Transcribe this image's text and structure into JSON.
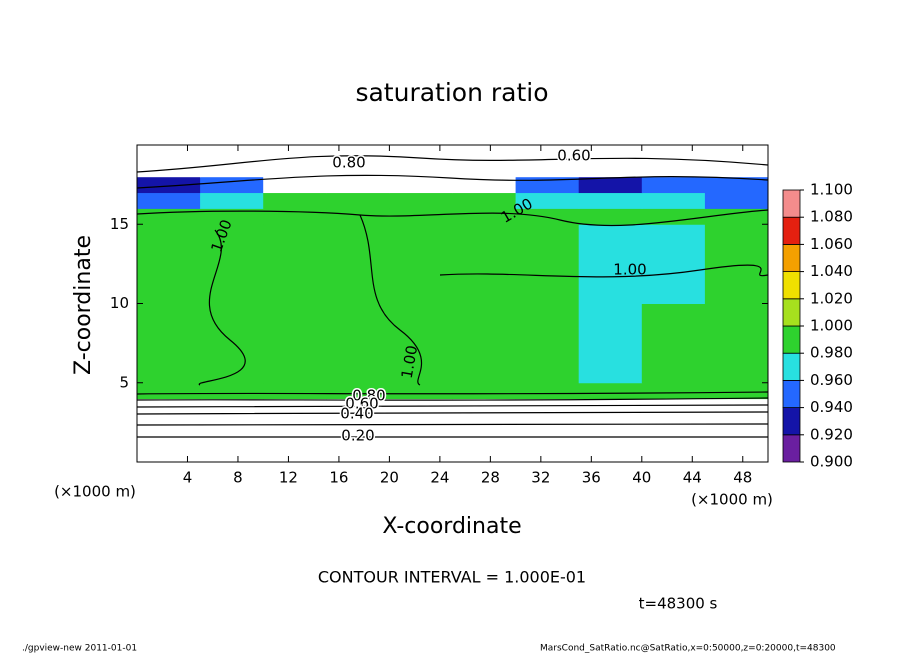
{
  "chart_data": {
    "type": "heatmap",
    "title": "saturation ratio",
    "x_label": "X-coordinate",
    "y_label": "Z-coordinate",
    "x_unit": "(×1000 m)",
    "y_unit": "(×1000 m)",
    "xlim": [
      0,
      50
    ],
    "ylim": [
      0,
      20
    ],
    "xticks": [
      4,
      8,
      12,
      16,
      20,
      24,
      28,
      32,
      36,
      40,
      44,
      48
    ],
    "yticks": [
      5,
      10,
      15
    ],
    "x_edges": [
      0,
      5,
      10,
      15,
      20,
      25,
      30,
      35,
      40,
      45,
      50
    ],
    "z_edges": [
      0,
      2,
      4,
      5,
      10,
      15,
      16,
      17,
      18,
      20
    ],
    "values": [
      [
        0.2,
        0.2,
        0.2,
        0.2,
        0.2,
        0.2,
        0.2,
        0.2,
        0.2,
        0.2
      ],
      [
        0.5,
        0.5,
        0.5,
        0.5,
        0.5,
        0.5,
        0.5,
        0.5,
        0.5,
        0.5
      ],
      [
        0.995,
        0.995,
        0.995,
        0.995,
        0.995,
        0.995,
        0.995,
        0.995,
        0.995,
        0.995
      ],
      [
        0.995,
        0.995,
        0.995,
        0.995,
        0.995,
        0.995,
        0.995,
        0.975,
        0.99,
        0.995
      ],
      [
        0.995,
        0.995,
        0.995,
        0.995,
        0.995,
        0.995,
        0.985,
        0.975,
        0.975,
        0.99
      ],
      [
        0.995,
        0.995,
        0.995,
        0.995,
        0.995,
        0.99,
        0.995,
        0.995,
        0.995,
        0.995
      ],
      [
        0.95,
        0.97,
        0.99,
        0.985,
        0.985,
        0.99,
        0.97,
        0.96,
        0.96,
        0.95
      ],
      [
        0.93,
        0.94,
        0.8,
        0.8,
        0.8,
        0.8,
        0.94,
        0.93,
        0.94,
        0.94
      ],
      [
        0.7,
        0.7,
        0.7,
        0.7,
        0.7,
        0.7,
        0.7,
        0.7,
        0.7,
        0.7
      ]
    ],
    "colorbar_ticks": [
      {
        "value": 0.9,
        "label": "0.900"
      },
      {
        "value": 0.92,
        "label": "0.920"
      },
      {
        "value": 0.94,
        "label": "0.940"
      },
      {
        "value": 0.96,
        "label": "0.960"
      },
      {
        "value": 0.98,
        "label": "0.980"
      },
      {
        "value": 1.0,
        "label": "1.000"
      },
      {
        "value": 1.02,
        "label": "1.020"
      },
      {
        "value": 1.04,
        "label": "1.040"
      },
      {
        "value": 1.06,
        "label": "1.060"
      },
      {
        "value": 1.08,
        "label": "1.080"
      },
      {
        "value": 1.1,
        "label": "1.100"
      }
    ],
    "colors": [
      "#6a1fa0",
      "#1414a8",
      "#2468ff",
      "#28e0e0",
      "#2ed22e",
      "#a6e01e",
      "#f0e000",
      "#f4a000",
      "#e42010",
      "#f48c8c"
    ],
    "contour_labels": [
      {
        "value": 0.8,
        "label": "0.80"
      },
      {
        "value": 0.6,
        "label": "0.60"
      },
      {
        "value": 1.0,
        "label": "1.00"
      },
      {
        "value": 1.0,
        "label": "1.00"
      },
      {
        "value": 1.0,
        "label": "1.00"
      },
      {
        "value": 1.0,
        "label": "1.00"
      },
      {
        "value": 0.8,
        "label": "0.80"
      },
      {
        "value": 0.6,
        "label": "0.60"
      },
      {
        "value": 0.4,
        "label": "0.40"
      },
      {
        "value": 0.2,
        "label": "0.20"
      }
    ],
    "annotation": "CONTOUR INTERVAL = 1.000E-01",
    "time_label": "t=48300 s",
    "footer_left": "./gpview-new  2011-01-01",
    "footer_right": "MarsCond_SatRatio.nc@SatRatio,x=0:50000,z=0:20000,t=48300"
  }
}
